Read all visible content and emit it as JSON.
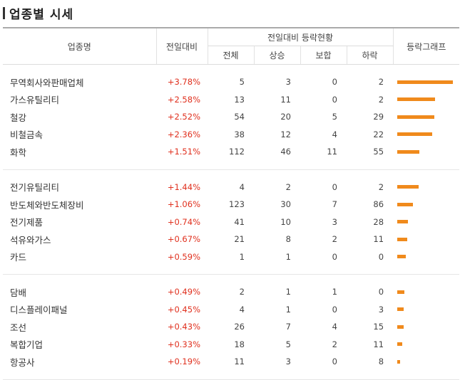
{
  "title": "업종별 시세",
  "headers": {
    "name": "업종명",
    "rate": "전일대비",
    "group": "전일대비 등락현황",
    "total": "전체",
    "up": "상승",
    "flat": "보합",
    "down": "하락",
    "graph": "등락그래프"
  },
  "groups": [
    [
      {
        "name": "무역회사와판매업체",
        "rate": "+3.78%",
        "total": "5",
        "up": "3",
        "flat": "0",
        "down": "2",
        "bar_pct": 3.78
      },
      {
        "name": "가스유틸리티",
        "rate": "+2.58%",
        "total": "13",
        "up": "11",
        "flat": "0",
        "down": "2",
        "bar_pct": 2.58
      },
      {
        "name": "철강",
        "rate": "+2.52%",
        "total": "54",
        "up": "20",
        "flat": "5",
        "down": "29",
        "bar_pct": 2.52
      },
      {
        "name": "비철금속",
        "rate": "+2.36%",
        "total": "38",
        "up": "12",
        "flat": "4",
        "down": "22",
        "bar_pct": 2.36
      },
      {
        "name": "화학",
        "rate": "+1.51%",
        "total": "112",
        "up": "46",
        "flat": "11",
        "down": "55",
        "bar_pct": 1.51
      }
    ],
    [
      {
        "name": "전기유틸리티",
        "rate": "+1.44%",
        "total": "4",
        "up": "2",
        "flat": "0",
        "down": "2",
        "bar_pct": 1.44
      },
      {
        "name": "반도체와반도체장비",
        "rate": "+1.06%",
        "total": "123",
        "up": "30",
        "flat": "7",
        "down": "86",
        "bar_pct": 1.06
      },
      {
        "name": "전기제품",
        "rate": "+0.74%",
        "total": "41",
        "up": "10",
        "flat": "3",
        "down": "28",
        "bar_pct": 0.74
      },
      {
        "name": "석유와가스",
        "rate": "+0.67%",
        "total": "21",
        "up": "8",
        "flat": "2",
        "down": "11",
        "bar_pct": 0.67
      },
      {
        "name": "카드",
        "rate": "+0.59%",
        "total": "1",
        "up": "1",
        "flat": "0",
        "down": "0",
        "bar_pct": 0.59
      }
    ],
    [
      {
        "name": "담배",
        "rate": "+0.49%",
        "total": "2",
        "up": "1",
        "flat": "1",
        "down": "0",
        "bar_pct": 0.49
      },
      {
        "name": "디스플레이패널",
        "rate": "+0.45%",
        "total": "4",
        "up": "1",
        "flat": "0",
        "down": "3",
        "bar_pct": 0.45
      },
      {
        "name": "조선",
        "rate": "+0.43%",
        "total": "26",
        "up": "7",
        "flat": "4",
        "down": "15",
        "bar_pct": 0.43
      },
      {
        "name": "복합기업",
        "rate": "+0.33%",
        "total": "18",
        "up": "5",
        "flat": "2",
        "down": "11",
        "bar_pct": 0.33
      },
      {
        "name": "항공사",
        "rate": "+0.19%",
        "total": "11",
        "up": "3",
        "flat": "0",
        "down": "8",
        "bar_pct": 0.19
      }
    ]
  ],
  "colors": {
    "up": "#e0301e",
    "bar": "#f08a1c"
  }
}
